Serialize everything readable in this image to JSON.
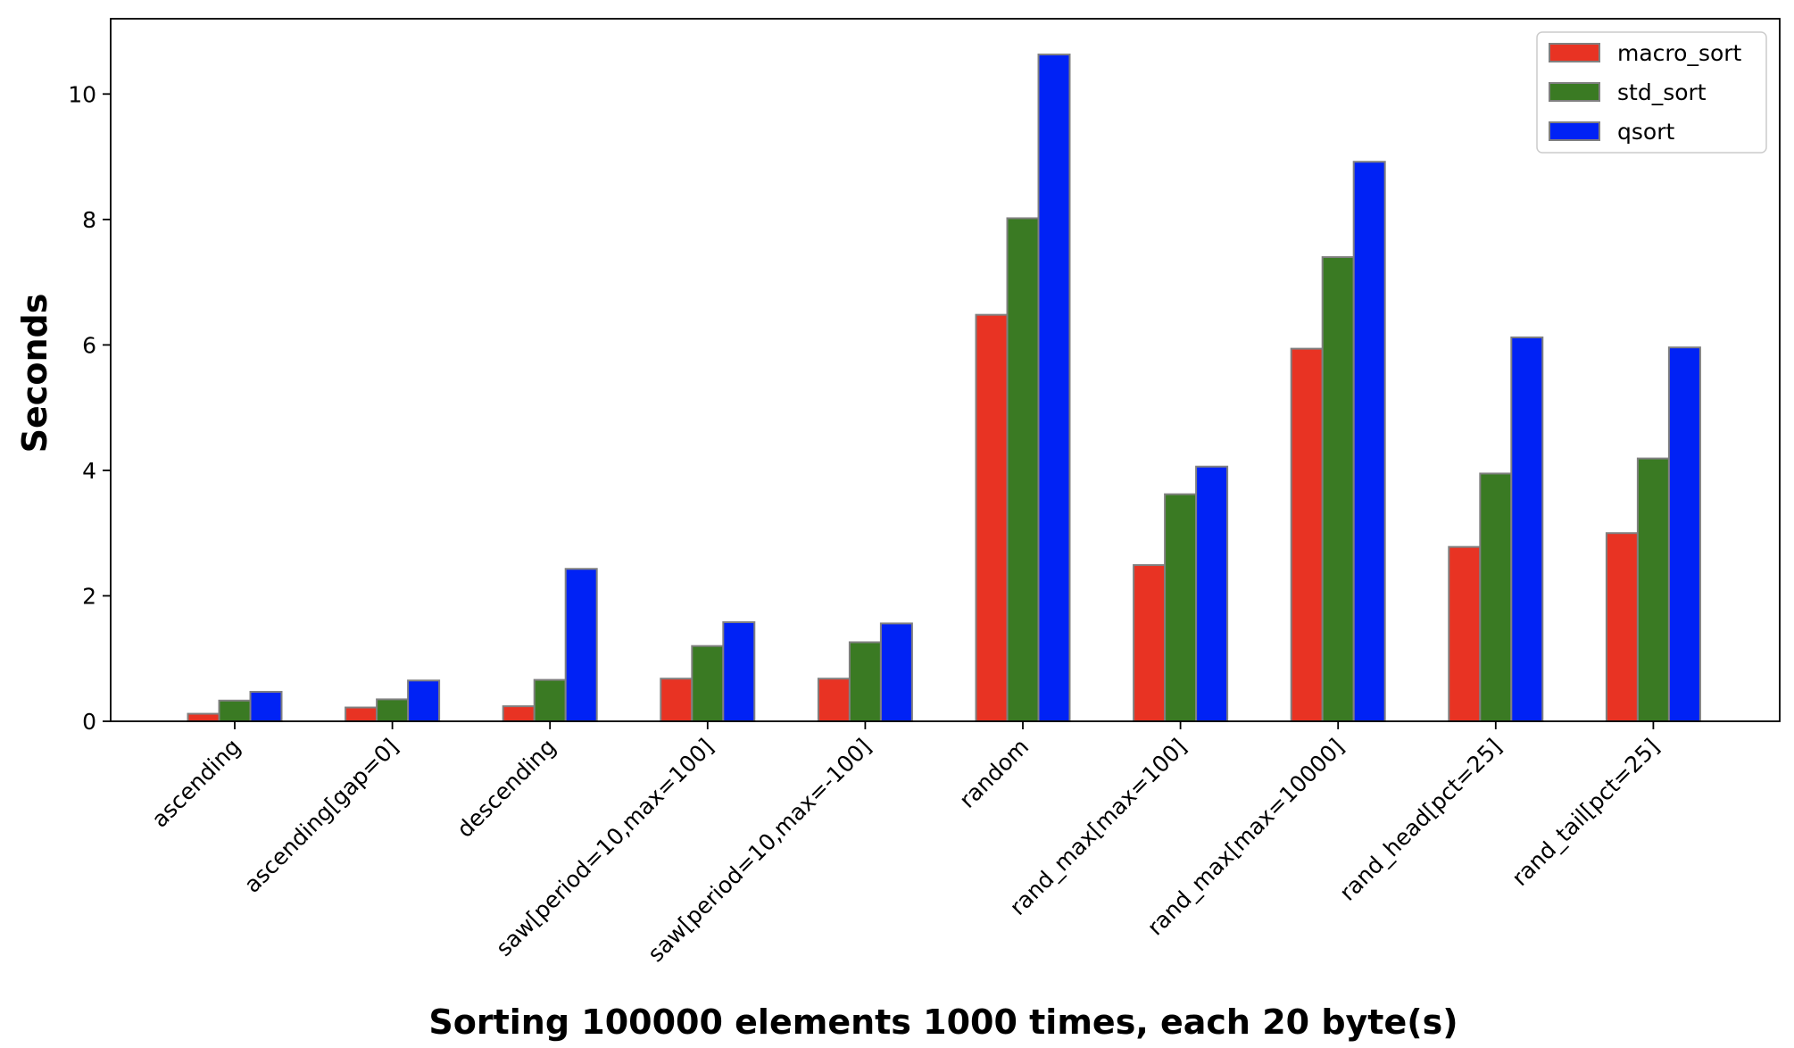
{
  "chart_data": {
    "type": "bar",
    "xlabel": "Sorting 100000 elements 1000 times, each 20 byte(s)",
    "ylabel": "Seconds",
    "categories": [
      "ascending",
      "ascending[gap=0]",
      "descending",
      "saw[period=10,max=100]",
      "saw[period=10,max=-100]",
      "random",
      "rand_max[max=100]",
      "rand_max[max=10000]",
      "rand_head[pct=25]",
      "rand_tail[pct=25]"
    ],
    "series": [
      {
        "name": "macro_sort",
        "color": "#e83323",
        "values": [
          0.12,
          0.22,
          0.24,
          0.68,
          0.68,
          6.48,
          2.49,
          5.94,
          2.78,
          3.0
        ]
      },
      {
        "name": "std_sort",
        "color": "#3a7a23",
        "values": [
          0.33,
          0.35,
          0.66,
          1.2,
          1.26,
          8.02,
          3.62,
          7.4,
          3.95,
          4.19
        ]
      },
      {
        "name": "qsort",
        "color": "#0022f5",
        "values": [
          0.47,
          0.65,
          2.43,
          1.58,
          1.56,
          10.63,
          4.06,
          8.92,
          6.12,
          5.96
        ]
      }
    ],
    "bar_edge_color": "#808080",
    "yticks": [
      0,
      2,
      4,
      6,
      8,
      10
    ],
    "ylim": [
      0,
      11.2
    ],
    "grid": false,
    "legend_position": "top-right"
  }
}
